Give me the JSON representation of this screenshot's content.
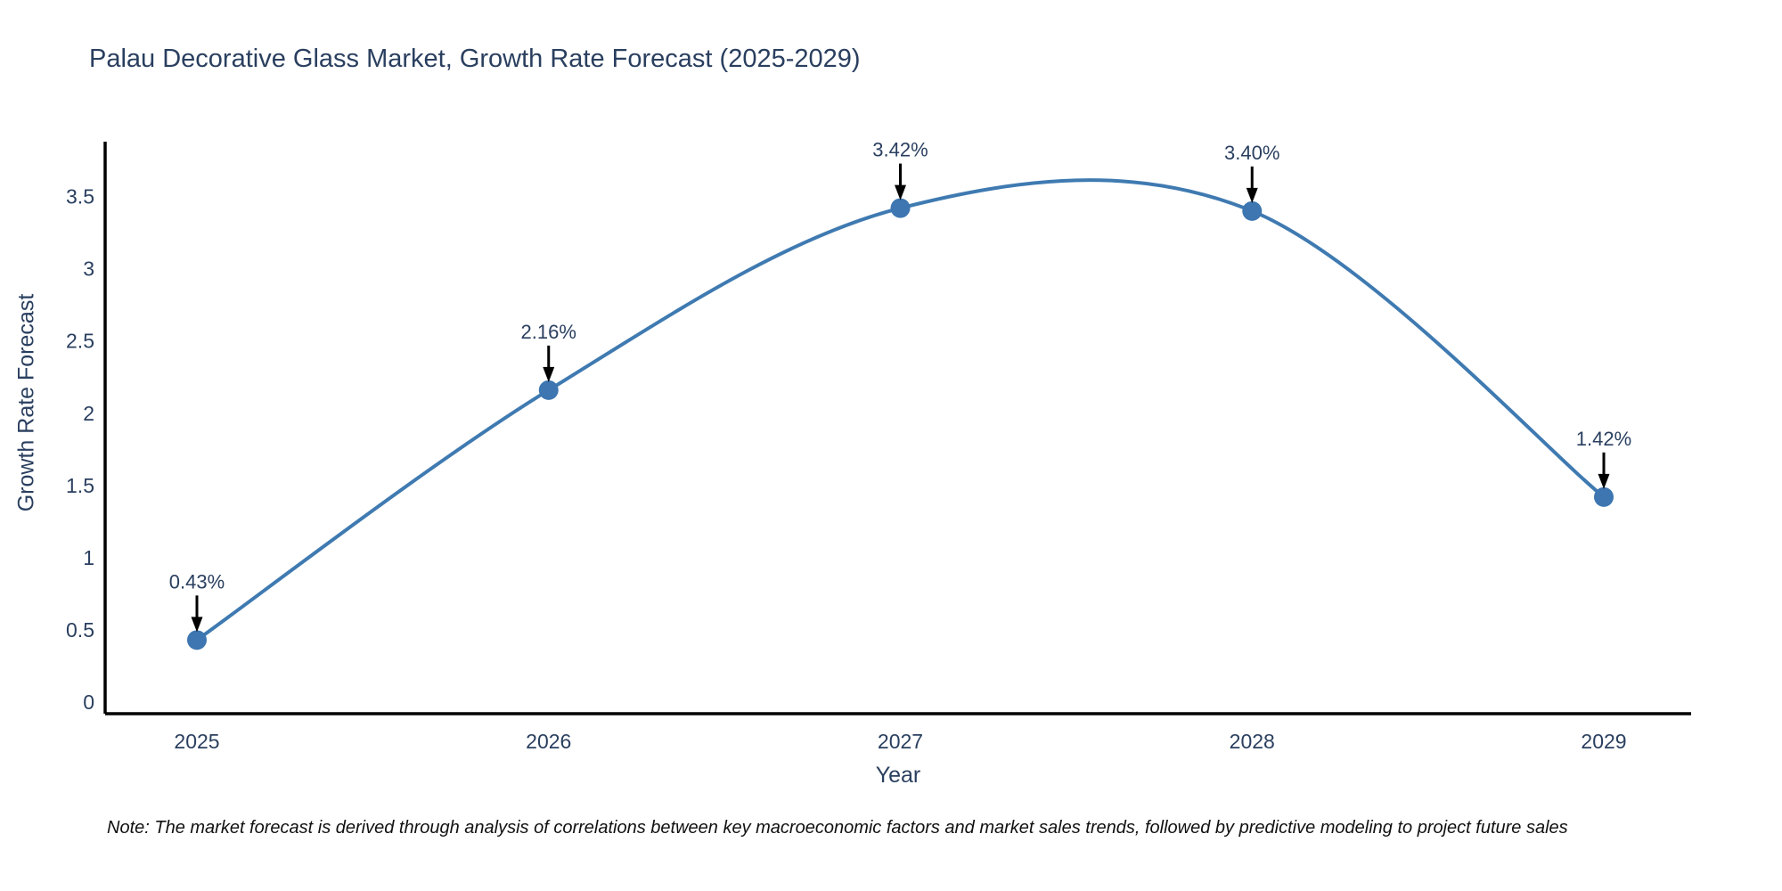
{
  "chart_data": {
    "type": "line",
    "title": "Palau Decorative Glass Market, Growth Rate Forecast (2025-2029)",
    "xlabel": "Year",
    "ylabel": "Growth Rate Forecast",
    "categories": [
      "2025",
      "2026",
      "2027",
      "2028",
      "2029"
    ],
    "values": [
      0.43,
      2.16,
      3.42,
      3.4,
      1.42
    ],
    "point_labels": [
      "0.43%",
      "2.16%",
      "3.42%",
      "3.40%",
      "1.42%"
    ],
    "yticks": [
      0,
      0.5,
      1,
      1.5,
      2,
      2.5,
      3,
      3.5
    ],
    "ylim": [
      -0.08,
      3.88
    ],
    "grid": false,
    "legend": "none",
    "line_shape": "spline",
    "colors": {
      "line": "#3f7ab1",
      "marker": "#3d76b0",
      "axis": "#000000",
      "annotation_arrow": "#000000",
      "text": "#2a3f5f"
    }
  },
  "note": "Note: The market forecast is derived through analysis of correlations between key macroeconomic factors and market sales trends, followed by predictive modeling to project future sales"
}
